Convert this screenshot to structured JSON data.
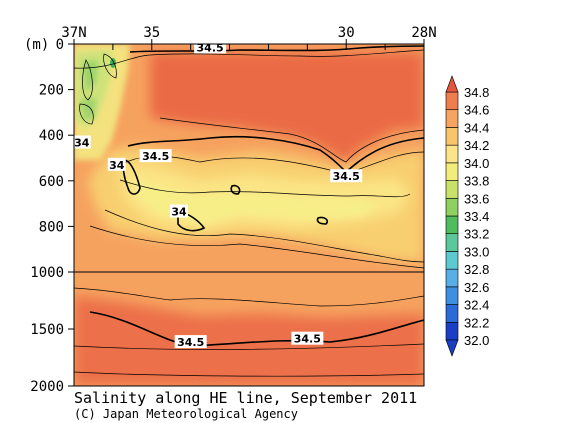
{
  "chart_data": {
    "type": "heatmap",
    "title": "Salinity along HE line, September 2011",
    "credit": "(C) Japan Meteorological Agency",
    "x_axis": {
      "position": "top",
      "tick_labels": [
        "37N",
        "35",
        "30",
        "28N"
      ],
      "tick_values": [
        37,
        35,
        30,
        28
      ],
      "minor_ticks": [
        37,
        36,
        35,
        34,
        33,
        32,
        31,
        30,
        29,
        28
      ],
      "range": [
        37,
        28
      ]
    },
    "y_axis": {
      "unit_label": "(m)",
      "tick_labels": [
        "0",
        "200",
        "400",
        "600",
        "800",
        "1000",
        "1500",
        "2000"
      ],
      "tick_values": [
        0,
        200,
        400,
        600,
        800,
        1000,
        1500,
        2000
      ],
      "upper_panel_range": [
        0,
        1000
      ],
      "lower_panel_range": [
        1000,
        2000
      ],
      "inverted": true
    },
    "colorbar": {
      "levels": [
        32.0,
        32.2,
        32.4,
        32.6,
        32.8,
        33.0,
        33.2,
        33.4,
        33.6,
        33.8,
        34.0,
        34.2,
        34.4,
        34.6,
        34.8
      ],
      "tick_labels": [
        "32.0",
        "32.2",
        "32.4",
        "32.6",
        "32.8",
        "33.0",
        "33.2",
        "33.4",
        "33.6",
        "33.8",
        "34.0",
        "34.2",
        "34.4",
        "34.6",
        "34.8"
      ],
      "colors": [
        "#1a3fc4",
        "#2a6bd8",
        "#3e8fe0",
        "#57afe6",
        "#5fc9d2",
        "#5cc79a",
        "#4fbd5e",
        "#8fd161",
        "#c9e06b",
        "#f3ec7b",
        "#fbe48a",
        "#f8c56c",
        "#f5a461",
        "#ee7e4e",
        "#e4553d"
      ],
      "extend": "both"
    },
    "contour_labels": [
      {
        "text": "34.5",
        "lat": 33.5,
        "depth": 15
      },
      {
        "text": "34",
        "lat": 36.8,
        "depth": 432
      },
      {
        "text": "34",
        "lat": 35.9,
        "depth": 530
      },
      {
        "text": "34.5",
        "lat": 34.9,
        "depth": 492
      },
      {
        "text": "34.5",
        "lat": 30.0,
        "depth": 580
      },
      {
        "text": "34",
        "lat": 34.3,
        "depth": 735
      },
      {
        "text": "34.5",
        "lat": 34.0,
        "depth": 1615
      },
      {
        "text": "34.5",
        "lat": 31.0,
        "depth": 1585
      }
    ]
  }
}
